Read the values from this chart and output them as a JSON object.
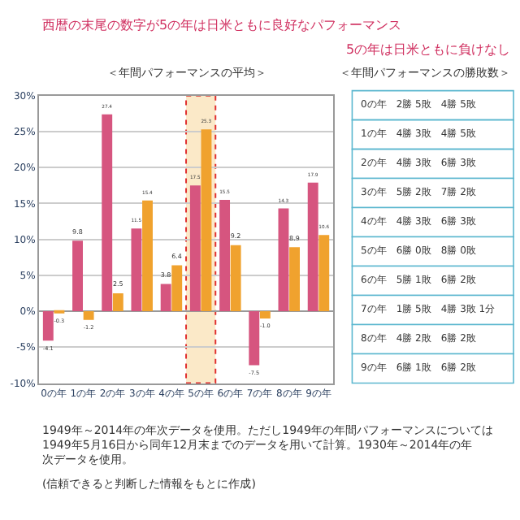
{
  "chart_data": [
    {
      "type": "bar",
      "title": "西暦の末尾の数字が5の年は日米ともに良好なパフォーマンス",
      "subtitle": "＜年間パフォーマンスの平均＞",
      "categories": [
        "0の年",
        "1の年",
        "2の年",
        "3の年",
        "4の年",
        "5の年",
        "6の年",
        "7の年",
        "8の年",
        "9の年"
      ],
      "series": [
        {
          "color": "#d6557f",
          "values": [
            -4.1,
            9.8,
            27.4,
            11.5,
            3.8,
            17.5,
            15.5,
            -7.5,
            14.3,
            17.9
          ]
        },
        {
          "color": "#f0a22e",
          "values": [
            -0.3,
            -1.2,
            2.5,
            15.4,
            6.4,
            25.3,
            9.2,
            -1.0,
            8.9,
            10.6
          ],
          "value_labels": [
            "-0.3",
            "-1.2",
            "2.5",
            "15.4",
            "6.4",
            "25.3",
            "9.2",
            "-1.0",
            "8.9",
            "10.6"
          ]
        }
      ],
      "ylim": [
        -10,
        30
      ],
      "yticks": [
        {
          "value": -10,
          "label": "-10%"
        },
        {
          "value": -5,
          "label": "-5%"
        },
        {
          "value": 0,
          "label": "0%"
        },
        {
          "value": 5,
          "label": "5%"
        },
        {
          "value": 10,
          "label": "10%"
        },
        {
          "value": 15,
          "label": "15%"
        },
        {
          "value": 20,
          "label": "20%"
        },
        {
          "value": 25,
          "label": "25%"
        },
        {
          "value": 30,
          "label": "30%"
        }
      ],
      "grid": "y",
      "data_labels": true,
      "bands": [
        {
          "axis": "x",
          "from": "5の年",
          "to": "5の年",
          "color": "#fbe9c8"
        }
      ],
      "annotations": [
        "1949年～2014年の年次データを使用。ただし1949年の年間パフォーマンスについては1949年5月16日から同年12月末までのデータを用いて計算。1930年～2014年の年次データを使用。",
        "(信頼できると判断した情報をもとに作成)"
      ]
    },
    {
      "type": "other",
      "title": "5の年は日米ともに負けなし",
      "subtitle": "＜年間パフォーマンスの勝敗数＞",
      "annotations": [
        "0の年　2勝 5敗　4勝 5敗",
        "1の年　4勝 3敗　4勝 5敗",
        "2の年　4勝 3敗　6勝 3敗",
        "3の年　5勝 2敗　7勝 2敗",
        "4の年　4勝 3敗　6勝 3敗",
        "5の年　6勝 0敗　8勝 0敗",
        "6の年　5勝 1敗　6勝 2敗",
        "7の年　1勝 5敗　4勝 3敗 1分",
        "8の年　4勝 2敗　6勝 2敗",
        "9の年　6勝 1敗　6勝 2敗"
      ]
    }
  ]
}
